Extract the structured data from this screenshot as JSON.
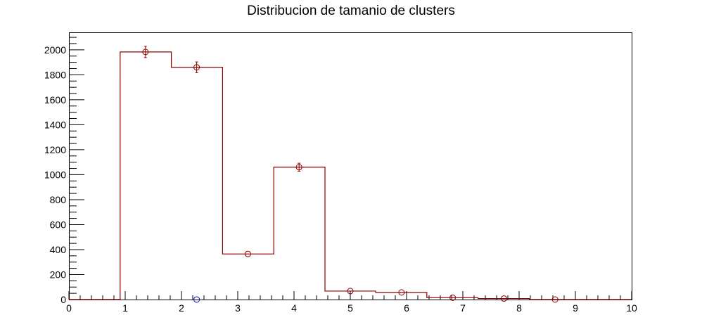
{
  "chart_data": {
    "type": "bar",
    "title": "Distribucion de tamanio de clusters",
    "xlabel": "",
    "ylabel": "",
    "xlim": [
      0,
      10
    ],
    "ylim": [
      0,
      2140
    ],
    "grid": false,
    "x_ticks": [
      "0",
      "1",
      "2",
      "3",
      "4",
      "5",
      "6",
      "7",
      "8",
      "9",
      "10"
    ],
    "y_ticks": [
      "0",
      "200",
      "400",
      "600",
      "800",
      "1000",
      "1200",
      "1400",
      "1600",
      "1800",
      "2000"
    ],
    "histogram": {
      "color": "#8b0000",
      "bin_edges": [
        0,
        0.91,
        1.82,
        2.73,
        3.64,
        4.55,
        5.45,
        6.36,
        7.27,
        8.18,
        9.09,
        10
      ],
      "values": [
        0,
        1983,
        1860,
        365,
        1060,
        68,
        57,
        15,
        8,
        0,
        0
      ]
    },
    "series": [
      {
        "marker": "open-circle",
        "color": "#8b0000",
        "x": [
          1.36,
          2.27,
          3.18,
          4.09,
          5.0,
          5.91,
          6.82,
          7.73,
          8.64
        ],
        "values": [
          1983,
          1860,
          365,
          1060,
          68,
          57,
          15,
          8,
          0
        ],
        "errors": [
          45,
          43,
          0,
          32,
          0,
          0,
          0,
          0,
          0
        ]
      },
      {
        "marker": "open-circle",
        "color": "#0000cc",
        "x": [
          2.27
        ],
        "values": [
          0
        ],
        "errors": [
          0
        ]
      }
    ]
  }
}
